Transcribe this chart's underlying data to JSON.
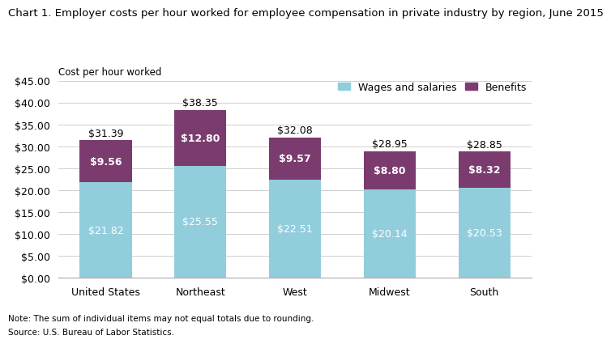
{
  "title": "Chart 1. Employer costs per hour worked for employee compensation in private industry by region, June 2015",
  "ylabel": "Cost per hour worked",
  "categories": [
    "United States",
    "Northeast",
    "West",
    "Midwest",
    "South"
  ],
  "wages": [
    21.82,
    25.55,
    22.51,
    20.14,
    20.53
  ],
  "benefits": [
    9.56,
    12.8,
    9.57,
    8.8,
    8.32
  ],
  "totals": [
    31.39,
    38.35,
    32.08,
    28.95,
    28.85
  ],
  "wages_color": "#92CDDC",
  "benefits_color": "#7B3B6E",
  "wages_label": "Wages and salaries",
  "benefits_label": "Benefits",
  "ylim": [
    0,
    45
  ],
  "yticks": [
    0,
    5,
    10,
    15,
    20,
    25,
    30,
    35,
    40,
    45
  ],
  "ytick_labels": [
    "$0.00",
    "$5.00",
    "$10.00",
    "$15.00",
    "$20.00",
    "$25.00",
    "$30.00",
    "$35.00",
    "$40.00",
    "$45.00"
  ],
  "note": "Note: The sum of individual items may not equal totals due to rounding.",
  "source": "Source: U.S. Bureau of Labor Statistics.",
  "title_fontsize": 9.5,
  "ylabel_fontsize": 8.5,
  "tick_fontsize": 9,
  "legend_fontsize": 9,
  "annotation_fontsize": 9,
  "total_annotation_fontsize": 9,
  "bar_width": 0.55,
  "background_color": "#ffffff",
  "grid_color": "#c8c8c8",
  "note_fontsize": 7.5
}
